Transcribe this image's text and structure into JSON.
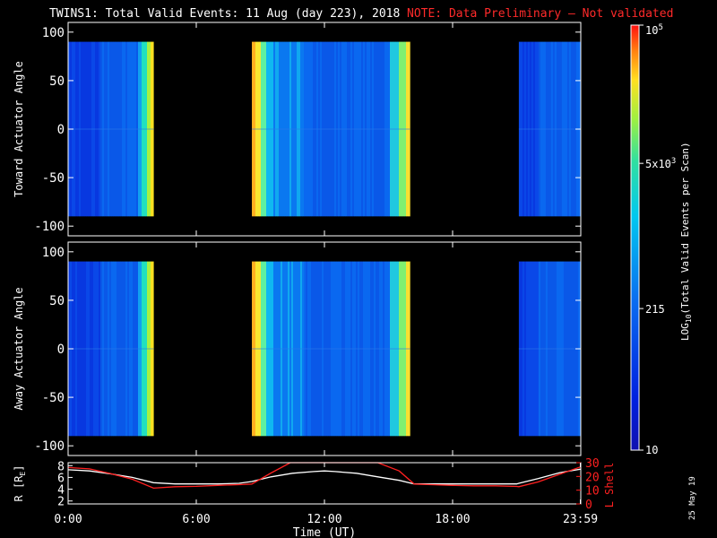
{
  "header": {
    "title": "TWINS1: Total Valid Events: 11 Aug (day 223), 2018",
    "note": "NOTE: Data Preliminary — Not validated"
  },
  "colors": {
    "background": "#000000",
    "note": "#ff2a2a",
    "lshell_line": "#ff2020",
    "r_line": "#ffffff"
  },
  "chart_data": [
    {
      "type": "heatmap",
      "panel": "toward",
      "ylabel": "Toward Actuator Angle",
      "ylim": [
        -110,
        110
      ],
      "yticks": [
        100,
        50,
        0,
        -50,
        -100
      ],
      "xlim": [
        0,
        24
      ],
      "data_extent_y": [
        -90,
        90
      ],
      "gaps_hours": [
        [
          4.0,
          8.6
        ],
        [
          16.0,
          21.1
        ]
      ],
      "observed_blocks_hours": [
        [
          0.0,
          4.0
        ],
        [
          8.6,
          16.0
        ],
        [
          21.1,
          24.0
        ]
      ],
      "colorscale": "log",
      "color_range": [
        10,
        100000
      ]
    },
    {
      "type": "heatmap",
      "panel": "away",
      "ylabel": "Away Actuator Angle",
      "ylim": [
        -110,
        110
      ],
      "yticks": [
        100,
        50,
        0,
        -50,
        -100
      ],
      "xlim": [
        0,
        24
      ],
      "data_extent_y": [
        -90,
        90
      ],
      "gaps_hours": [
        [
          4.0,
          8.6
        ],
        [
          16.0,
          21.1
        ]
      ],
      "observed_blocks_hours": [
        [
          0.0,
          4.0
        ],
        [
          8.6,
          16.0
        ],
        [
          21.1,
          24.0
        ]
      ],
      "colorscale": "log",
      "color_range": [
        10,
        100000
      ]
    },
    {
      "type": "line",
      "panel": "orbit",
      "xlabel": "Time (UT)",
      "xticks": [
        "0:00",
        "6:00",
        "12:00",
        "18:00",
        "23:59"
      ],
      "xtick_hours": [
        0,
        6,
        12,
        18,
        23.98
      ],
      "xlim": [
        0,
        24
      ],
      "left_axis": {
        "label_main": "R [R",
        "label_sub": "E",
        "label_close": "]",
        "ylim": [
          1.5,
          8.5
        ],
        "yticks": [
          2,
          4,
          6,
          8
        ]
      },
      "right_axis": {
        "label": "L Shell",
        "ylim": [
          0,
          30
        ],
        "yticks": [
          0,
          10,
          20,
          30
        ]
      },
      "series": [
        {
          "axis": "left",
          "x": [
            0,
            1,
            2,
            3,
            4,
            5,
            6,
            7,
            8,
            8.6,
            9.5,
            10.5,
            11.5,
            12,
            12.5,
            13.5,
            14.5,
            15.5,
            16.2,
            17,
            18,
            19,
            20,
            21,
            21.1,
            22,
            23,
            24
          ],
          "y": [
            7.3,
            7.1,
            6.6,
            6.0,
            5.1,
            4.9,
            4.9,
            4.9,
            5.0,
            5.3,
            6.1,
            6.7,
            7.0,
            7.1,
            7.0,
            6.7,
            6.1,
            5.5,
            4.9,
            4.9,
            4.9,
            4.9,
            4.9,
            4.9,
            5.0,
            5.8,
            6.8,
            7.4
          ]
        },
        {
          "axis": "right",
          "x": [
            0,
            1,
            2,
            3,
            4.0,
            5,
            6,
            7,
            8,
            8.6,
            9.5,
            10.4,
            14.5,
            15.5,
            16.2,
            17,
            18,
            19,
            20,
            21,
            21.1,
            22,
            23,
            24
          ],
          "y": [
            26.5,
            25.5,
            22.0,
            18.0,
            11.5,
            12.5,
            12.8,
            13.5,
            14.0,
            14.5,
            22.5,
            30.0,
            30.0,
            24.0,
            14.5,
            14.0,
            13.5,
            13.2,
            13.2,
            12.7,
            12.5,
            16.0,
            21.5,
            27.0
          ]
        }
      ]
    },
    {
      "type": "colorbar",
      "label_prefix": "LOG",
      "label_sub": "10",
      "label_suffix": "(Total Valid Events per Scan)",
      "ticks": [
        {
          "value": 10,
          "text": "10"
        },
        {
          "value": 215,
          "text": "215"
        },
        {
          "value": 5000,
          "text": "5x10^3"
        },
        {
          "value": 100000,
          "text": "10^5"
        }
      ],
      "range": [
        10,
        100000
      ]
    }
  ],
  "footer": {
    "date_stamp": "25 May 19"
  }
}
